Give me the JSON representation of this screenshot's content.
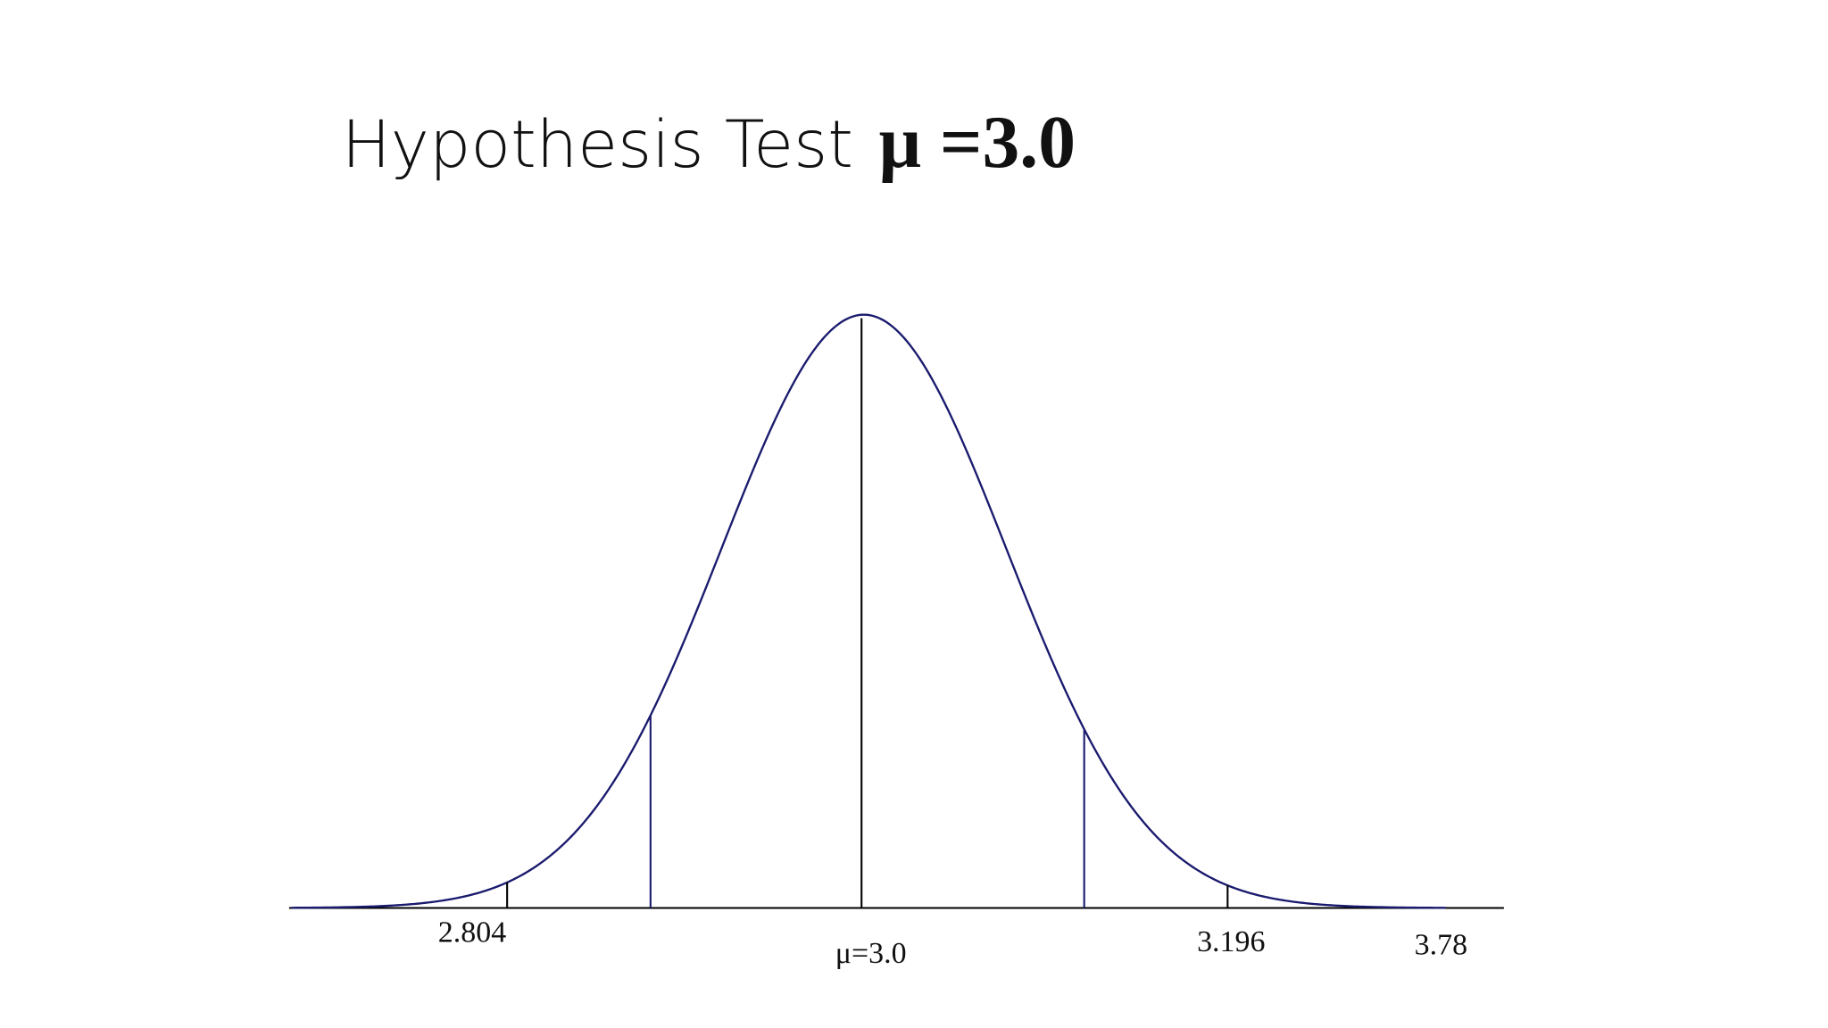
{
  "title": {
    "text": "Hypothesis Test",
    "symbol": "μ =3.0"
  },
  "labels": [
    "2.804",
    "μ=3.0",
    "3.196",
    "3.78"
  ]
}
